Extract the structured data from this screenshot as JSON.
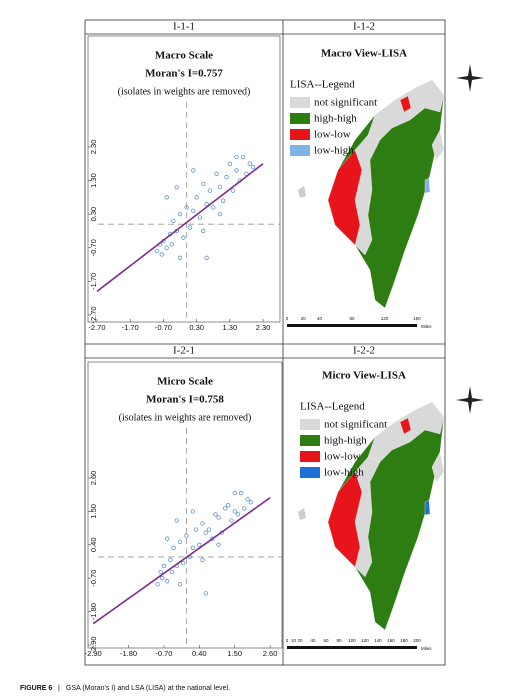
{
  "figure": {
    "headers": [
      "I-1-1",
      "I-1-2",
      "I-2-1",
      "I-2-2"
    ],
    "caption_label": "FIGURE 6",
    "caption": "GSA (Moran's I) and LSA (LISA) at the national level."
  },
  "chart_data": [
    {
      "type": "scatter",
      "title": "Macro Scale",
      "subtitle": "Moran's I=0.757",
      "note": "(isolates in weights are removed)",
      "color": "#4a86c8",
      "x": [
        -0.9,
        -0.8,
        -0.75,
        -0.7,
        -0.6,
        -0.5,
        -0.45,
        -0.4,
        -0.3,
        -0.2,
        -0.1,
        0,
        0.1,
        0.2,
        0.3,
        0.4,
        0.5,
        0.6,
        0.7,
        0.8,
        0.9,
        1.0,
        1.1,
        1.2,
        1.3,
        1.4,
        1.5,
        1.6,
        1.7,
        1.8,
        1.9,
        2.0,
        -0.6,
        -0.3,
        0.2,
        0.5,
        1.0,
        1.5,
        -0.2,
        0.6
      ],
      "y": [
        -0.8,
        -0.6,
        -0.9,
        -0.5,
        -0.7,
        -0.3,
        -0.6,
        0.1,
        -0.2,
        0.3,
        -0.4,
        0.5,
        -0.1,
        0.4,
        0.8,
        0.2,
        1.2,
        0.6,
        1.0,
        0.5,
        1.5,
        1.1,
        0.7,
        1.4,
        1.8,
        1.0,
        1.6,
        1.3,
        2.0,
        1.5,
        1.8,
        1.7,
        0.8,
        1.1,
        1.6,
        -0.2,
        0.3,
        2.0,
        -1.0,
        -1.0
      ],
      "trend": {
        "x": [
          -2.7,
          2.3
        ],
        "y": [
          -2.0,
          1.8
        ],
        "color": "#7b2d8e"
      },
      "reference_lines": {
        "x": 0,
        "y": 0
      },
      "xlim": [
        -2.97,
        2.81
      ],
      "ylim": [
        -2.91,
        5.6
      ],
      "xticks": [
        {
          "value": -2.7,
          "label": "-2.70"
        },
        {
          "value": -1.7,
          "label": "-1.70"
        },
        {
          "value": -0.7,
          "label": "-0.70"
        },
        {
          "value": 0.3,
          "label": "0.30"
        },
        {
          "value": 1.3,
          "label": "1.30"
        },
        {
          "value": 2.3,
          "label": "2.30"
        }
      ],
      "yticks": [
        {
          "value": -2.7,
          "label": "-2.70"
        },
        {
          "value": -1.7,
          "label": "-1.70"
        },
        {
          "value": -0.7,
          "label": "-0.70"
        },
        {
          "value": 0.3,
          "label": "0.30"
        },
        {
          "value": 1.3,
          "label": "1.30"
        },
        {
          "value": 2.3,
          "label": "2.30"
        }
      ]
    },
    {
      "type": "scatter",
      "title": "Micro Scale",
      "subtitle": "Moran's I=0.758",
      "note": "(isolates in weights are removed)",
      "color": "#4a86c8",
      "x": [
        -0.9,
        -0.8,
        -0.75,
        -0.7,
        -0.6,
        -0.5,
        -0.45,
        -0.4,
        -0.3,
        -0.2,
        -0.1,
        0,
        0.1,
        0.2,
        0.3,
        0.4,
        0.5,
        0.6,
        0.7,
        0.8,
        0.9,
        1.0,
        1.1,
        1.2,
        1.3,
        1.4,
        1.5,
        1.6,
        1.7,
        1.8,
        1.9,
        2.0,
        -0.6,
        -0.3,
        0.2,
        0.5,
        1.0,
        1.5,
        -0.2,
        0.6
      ],
      "y": [
        -0.9,
        -0.5,
        -0.7,
        -0.3,
        -0.8,
        -0.1,
        -0.5,
        0.3,
        -0.3,
        0.5,
        -0.2,
        0.7,
        0.0,
        0.3,
        0.9,
        0.4,
        1.1,
        0.8,
        0.9,
        0.6,
        1.4,
        1.3,
        0.8,
        1.6,
        1.7,
        1.2,
        1.5,
        1.4,
        2.1,
        1.6,
        1.9,
        1.8,
        0.6,
        1.2,
        1.5,
        -0.1,
        0.4,
        2.1,
        -0.9,
        -1.2
      ],
      "trend": {
        "x": [
          -2.9,
          2.6
        ],
        "y": [
          -2.2,
          1.95
        ],
        "color": "#7b2d8e"
      },
      "reference_lines": {
        "x": 0,
        "y": 0
      },
      "xlim": [
        -3.06,
        2.97
      ],
      "ylim": [
        -3.0,
        6.42
      ],
      "xticks": [
        {
          "value": -2.9,
          "label": "-2.90"
        },
        {
          "value": -1.8,
          "label": "-1.80"
        },
        {
          "value": -0.7,
          "label": "-0.70"
        },
        {
          "value": 0.4,
          "label": "0.40"
        },
        {
          "value": 1.5,
          "label": "1.50"
        },
        {
          "value": 2.6,
          "label": "2.60"
        }
      ],
      "yticks": [
        {
          "value": -2.9,
          "label": "-2.90"
        },
        {
          "value": -1.8,
          "label": "-1.80"
        },
        {
          "value": -0.7,
          "label": "-0.70"
        },
        {
          "value": 0.4,
          "label": "0.40"
        },
        {
          "value": 1.5,
          "label": "1.50"
        },
        {
          "value": 2.6,
          "label": "2.60"
        }
      ]
    }
  ],
  "maps": [
    {
      "title": "Macro View-LISA",
      "legend_title": "LISA--Legend",
      "legend": [
        {
          "label": "not significant",
          "color": "#d9d9d9"
        },
        {
          "label": "high-high",
          "color": "#2e7d12"
        },
        {
          "label": "low-low",
          "color": "#e8141b"
        },
        {
          "label": "low-high",
          "color": "#7fb3e6"
        }
      ],
      "scale_labels": [
        0,
        20,
        40,
        80,
        120,
        160
      ],
      "scale_unit": "Miles"
    },
    {
      "title": "Micro View-LISA",
      "legend_title": "LISA--Legend",
      "legend": [
        {
          "label": "not significant",
          "color": "#d9d9d9"
        },
        {
          "label": "high-high",
          "color": "#2e7d12"
        },
        {
          "label": "low-low",
          "color": "#e8141b"
        },
        {
          "label": "low-high",
          "color": "#1f6fd8"
        }
      ],
      "scale_labels": [
        0,
        10,
        20,
        40,
        60,
        80,
        100,
        120,
        140,
        160,
        180,
        200
      ],
      "scale_unit": "Miles"
    }
  ]
}
